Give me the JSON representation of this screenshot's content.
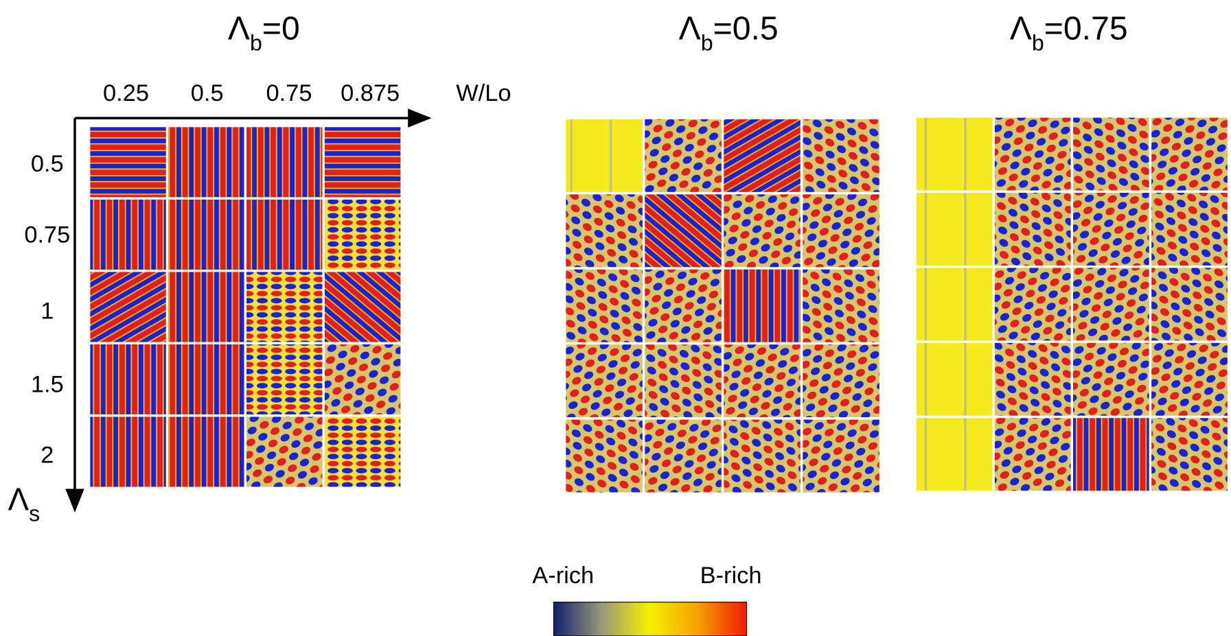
{
  "panels": [
    {
      "symbol": "Λ",
      "subscript": "b",
      "value": "=0"
    },
    {
      "symbol": "Λ",
      "subscript": "b",
      "value": "=0.5"
    },
    {
      "symbol": "Λ",
      "subscript": "b",
      "value": "=0.75"
    }
  ],
  "axes": {
    "x_label": "W/Lo",
    "x_ticks": [
      "0.25",
      "0.5",
      "0.75",
      "0.875"
    ],
    "y_symbol": "Λ",
    "y_subscript": "s",
    "y_ticks": [
      "0.5",
      "0.75",
      "1",
      "1.5",
      "2"
    ]
  },
  "colorbar": {
    "low_label": "A-rich",
    "high_label": "B-rich"
  }
}
